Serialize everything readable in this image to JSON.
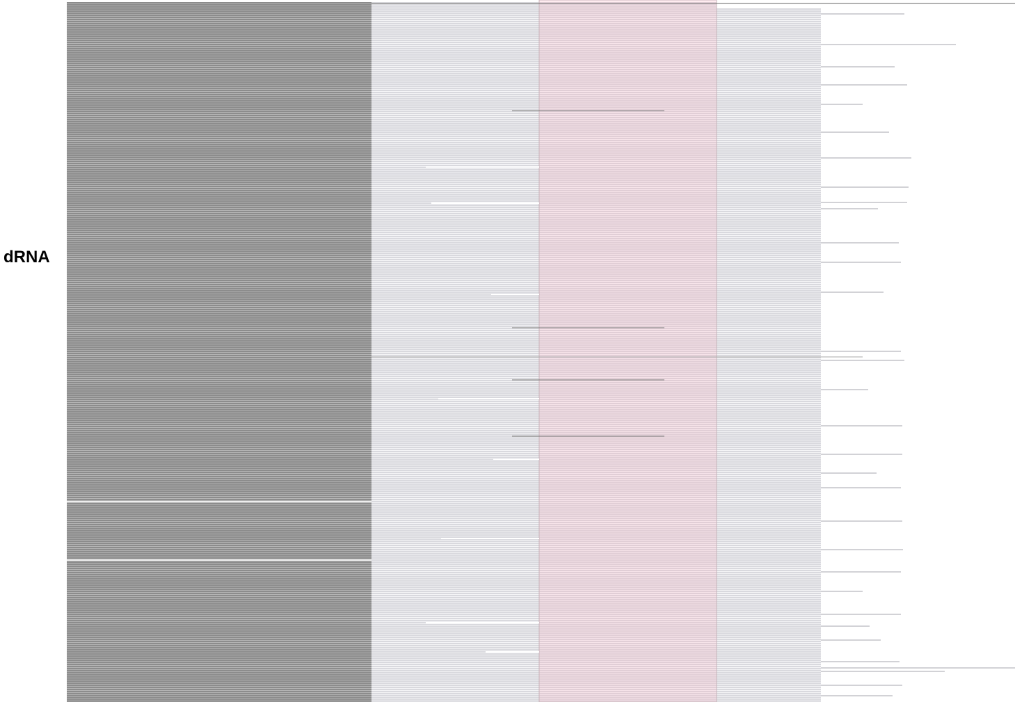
{
  "track": {
    "label": "dRNA"
  }
}
